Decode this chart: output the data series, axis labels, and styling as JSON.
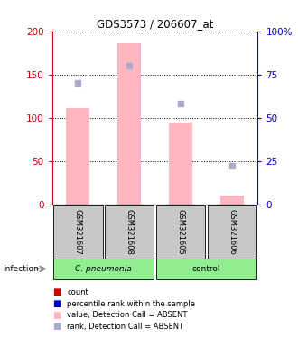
{
  "title": "GDS3573 / 206607_at",
  "samples": [
    "GSM321607",
    "GSM321608",
    "GSM321605",
    "GSM321606"
  ],
  "bar_values": [
    111,
    186,
    94,
    10
  ],
  "rank_values": [
    70,
    80,
    58,
    22
  ],
  "ylim_left": [
    0,
    200
  ],
  "ylim_right": [
    0,
    100
  ],
  "yticks_left": [
    0,
    50,
    100,
    150,
    200
  ],
  "ytick_labels_left": [
    "0",
    "50",
    "100",
    "150",
    "200"
  ],
  "yticks_right": [
    0,
    25,
    50,
    75,
    100
  ],
  "ytick_labels_right": [
    "0",
    "25",
    "50",
    "75",
    "100%"
  ],
  "bar_color": "#FFB6C1",
  "rank_dot_color": "#AAAACC",
  "left_axis_color": "#CC0000",
  "right_axis_color": "#0000CC",
  "sample_box_color": "#C8C8C8",
  "cpneumonia_color": "#90EE90",
  "control_color": "#90EE90",
  "legend_colors": [
    "#CC0000",
    "#0000CC",
    "#FFB6C1",
    "#AAAACC"
  ],
  "legend_labels": [
    "count",
    "percentile rank within the sample",
    "value, Detection Call = ABSENT",
    "rank, Detection Call = ABSENT"
  ]
}
